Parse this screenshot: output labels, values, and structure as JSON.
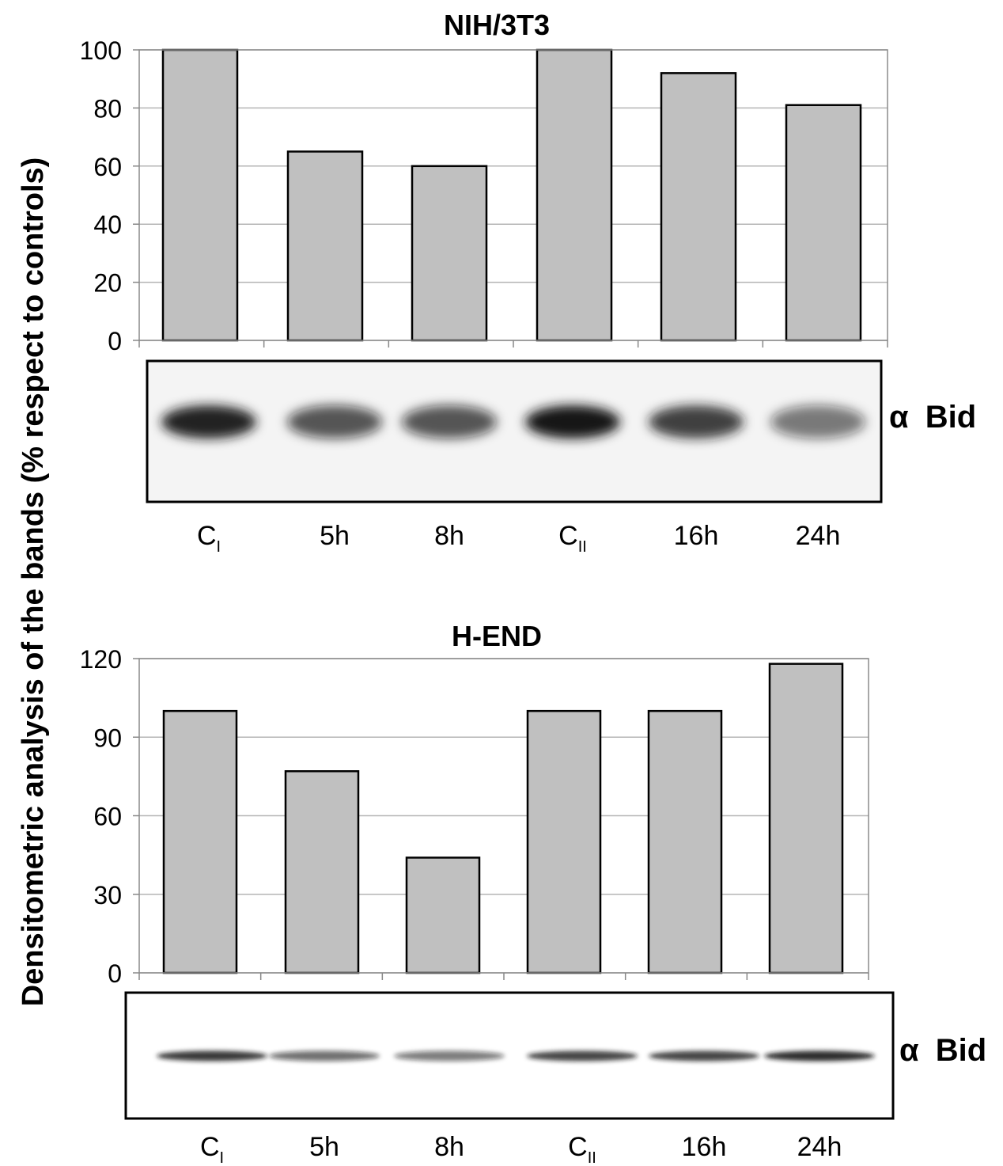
{
  "figure": {
    "ylabel": "Densitometric analysis of the bands (% respect to controls)"
  },
  "chart_data": [
    {
      "type": "bar",
      "title": "NIH/3T3",
      "categories": [
        {
          "main": "C",
          "sub": "I"
        },
        {
          "main": "5h",
          "sub": ""
        },
        {
          "main": "8h",
          "sub": ""
        },
        {
          "main": "C",
          "sub": "II"
        },
        {
          "main": "16h",
          "sub": ""
        },
        {
          "main": "24h",
          "sub": ""
        }
      ],
      "values": [
        100,
        65,
        60,
        100,
        92,
        81
      ],
      "yticks": [
        0,
        20,
        40,
        60,
        80,
        100
      ],
      "ylim": [
        0,
        100
      ],
      "grid": true,
      "bar_color": "#c0c0c0",
      "blot": {
        "label_symbol": "α",
        "label_text": "Bid",
        "band_intensity": [
          0.95,
          0.7,
          0.7,
          1.0,
          0.82,
          0.55
        ]
      }
    },
    {
      "type": "bar",
      "title": "H-END",
      "categories": [
        {
          "main": "C",
          "sub": "I"
        },
        {
          "main": "5h",
          "sub": ""
        },
        {
          "main": "8h",
          "sub": ""
        },
        {
          "main": "C",
          "sub": "II"
        },
        {
          "main": "16h",
          "sub": ""
        },
        {
          "main": "24h",
          "sub": ""
        }
      ],
      "values": [
        100,
        77,
        44,
        100,
        100,
        118
      ],
      "yticks": [
        0,
        30,
        60,
        90,
        120
      ],
      "ylim": [
        0,
        120
      ],
      "grid": true,
      "bar_color": "#c0c0c0",
      "blot": {
        "label_symbol": "α",
        "label_text": "Bid",
        "band_intensity": [
          0.85,
          0.6,
          0.55,
          0.8,
          0.8,
          0.9
        ]
      }
    }
  ]
}
